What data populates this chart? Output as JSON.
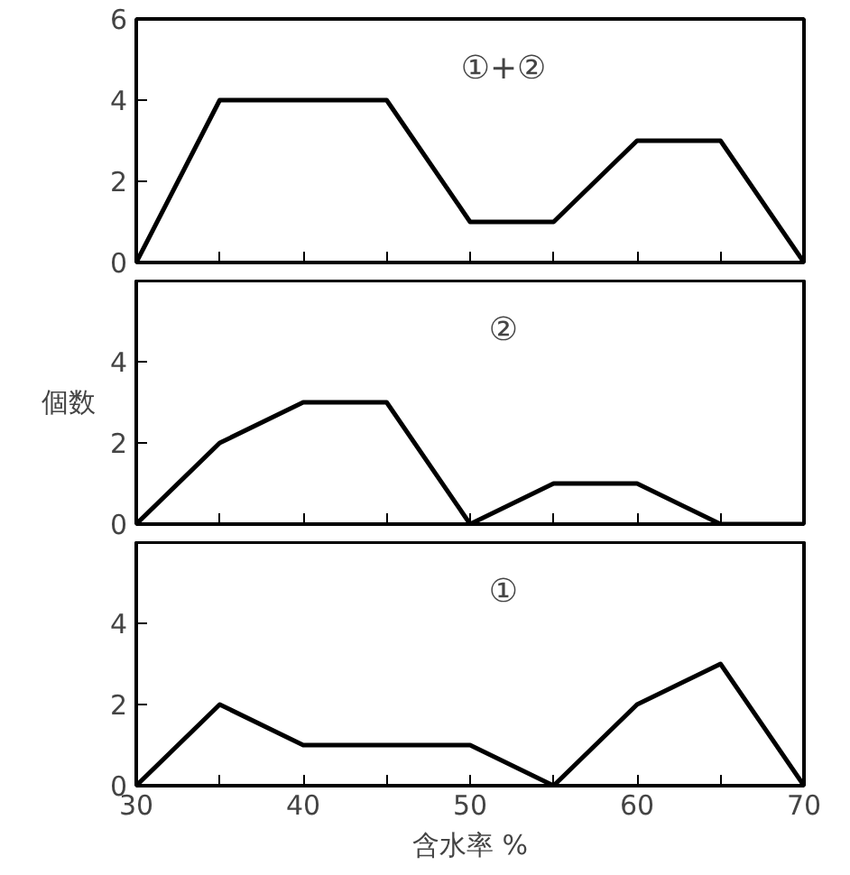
{
  "chart_data": [
    {
      "type": "line",
      "x": [
        30,
        35,
        40,
        45,
        50,
        55,
        60,
        65,
        70
      ],
      "xlim": [
        30,
        70
      ],
      "xticks": [
        30,
        {
          "value": 35,
          "label": null
        },
        40,
        {
          "value": 45,
          "label": null
        },
        50,
        {
          "value": 55,
          "label": null
        },
        60,
        {
          "value": 65,
          "label": null
        },
        70
      ],
      "ylim": [
        0,
        6
      ],
      "yticks": [
        0,
        2,
        4,
        6
      ],
      "tick_labels": "y",
      "grid": false,
      "annotations": [
        "①+②"
      ],
      "series": [
        {
          "color": "#000000",
          "values": [
            0,
            4,
            4,
            4,
            1,
            1,
            3,
            3,
            0
          ]
        }
      ]
    },
    {
      "type": "line",
      "x": [
        30,
        35,
        40,
        45,
        50,
        55,
        60,
        65,
        70
      ],
      "xlim": [
        30,
        70
      ],
      "xticks": [
        30,
        {
          "value": 35,
          "label": null
        },
        40,
        {
          "value": 45,
          "label": null
        },
        50,
        {
          "value": 55,
          "label": null
        },
        60,
        {
          "value": 65,
          "label": null
        },
        70
      ],
      "ylim": [
        0,
        6
      ],
      "yticks": [
        0,
        2,
        4
      ],
      "ylabel": "個数",
      "tick_labels": "y",
      "grid": false,
      "annotations": [
        "②"
      ],
      "series": [
        {
          "color": "#000000",
          "values": [
            0,
            2,
            3,
            3,
            0,
            1,
            1,
            0,
            0
          ]
        }
      ]
    },
    {
      "type": "line",
      "x": [
        30,
        35,
        40,
        45,
        50,
        55,
        60,
        65,
        70
      ],
      "xlim": [
        30,
        70
      ],
      "xticks": [
        30,
        {
          "value": 35,
          "label": null
        },
        40,
        {
          "value": 45,
          "label": null
        },
        50,
        {
          "value": 55,
          "label": null
        },
        60,
        {
          "value": 65,
          "label": null
        },
        70
      ],
      "ylim": [
        0,
        6
      ],
      "yticks": [
        0,
        2,
        4
      ],
      "xlabel": "含水率 %",
      "grid": false,
      "annotations": [
        "①"
      ],
      "series": [
        {
          "color": "#000000",
          "values": [
            0,
            2,
            1,
            1,
            1,
            0,
            2,
            3,
            0
          ]
        }
      ]
    }
  ]
}
